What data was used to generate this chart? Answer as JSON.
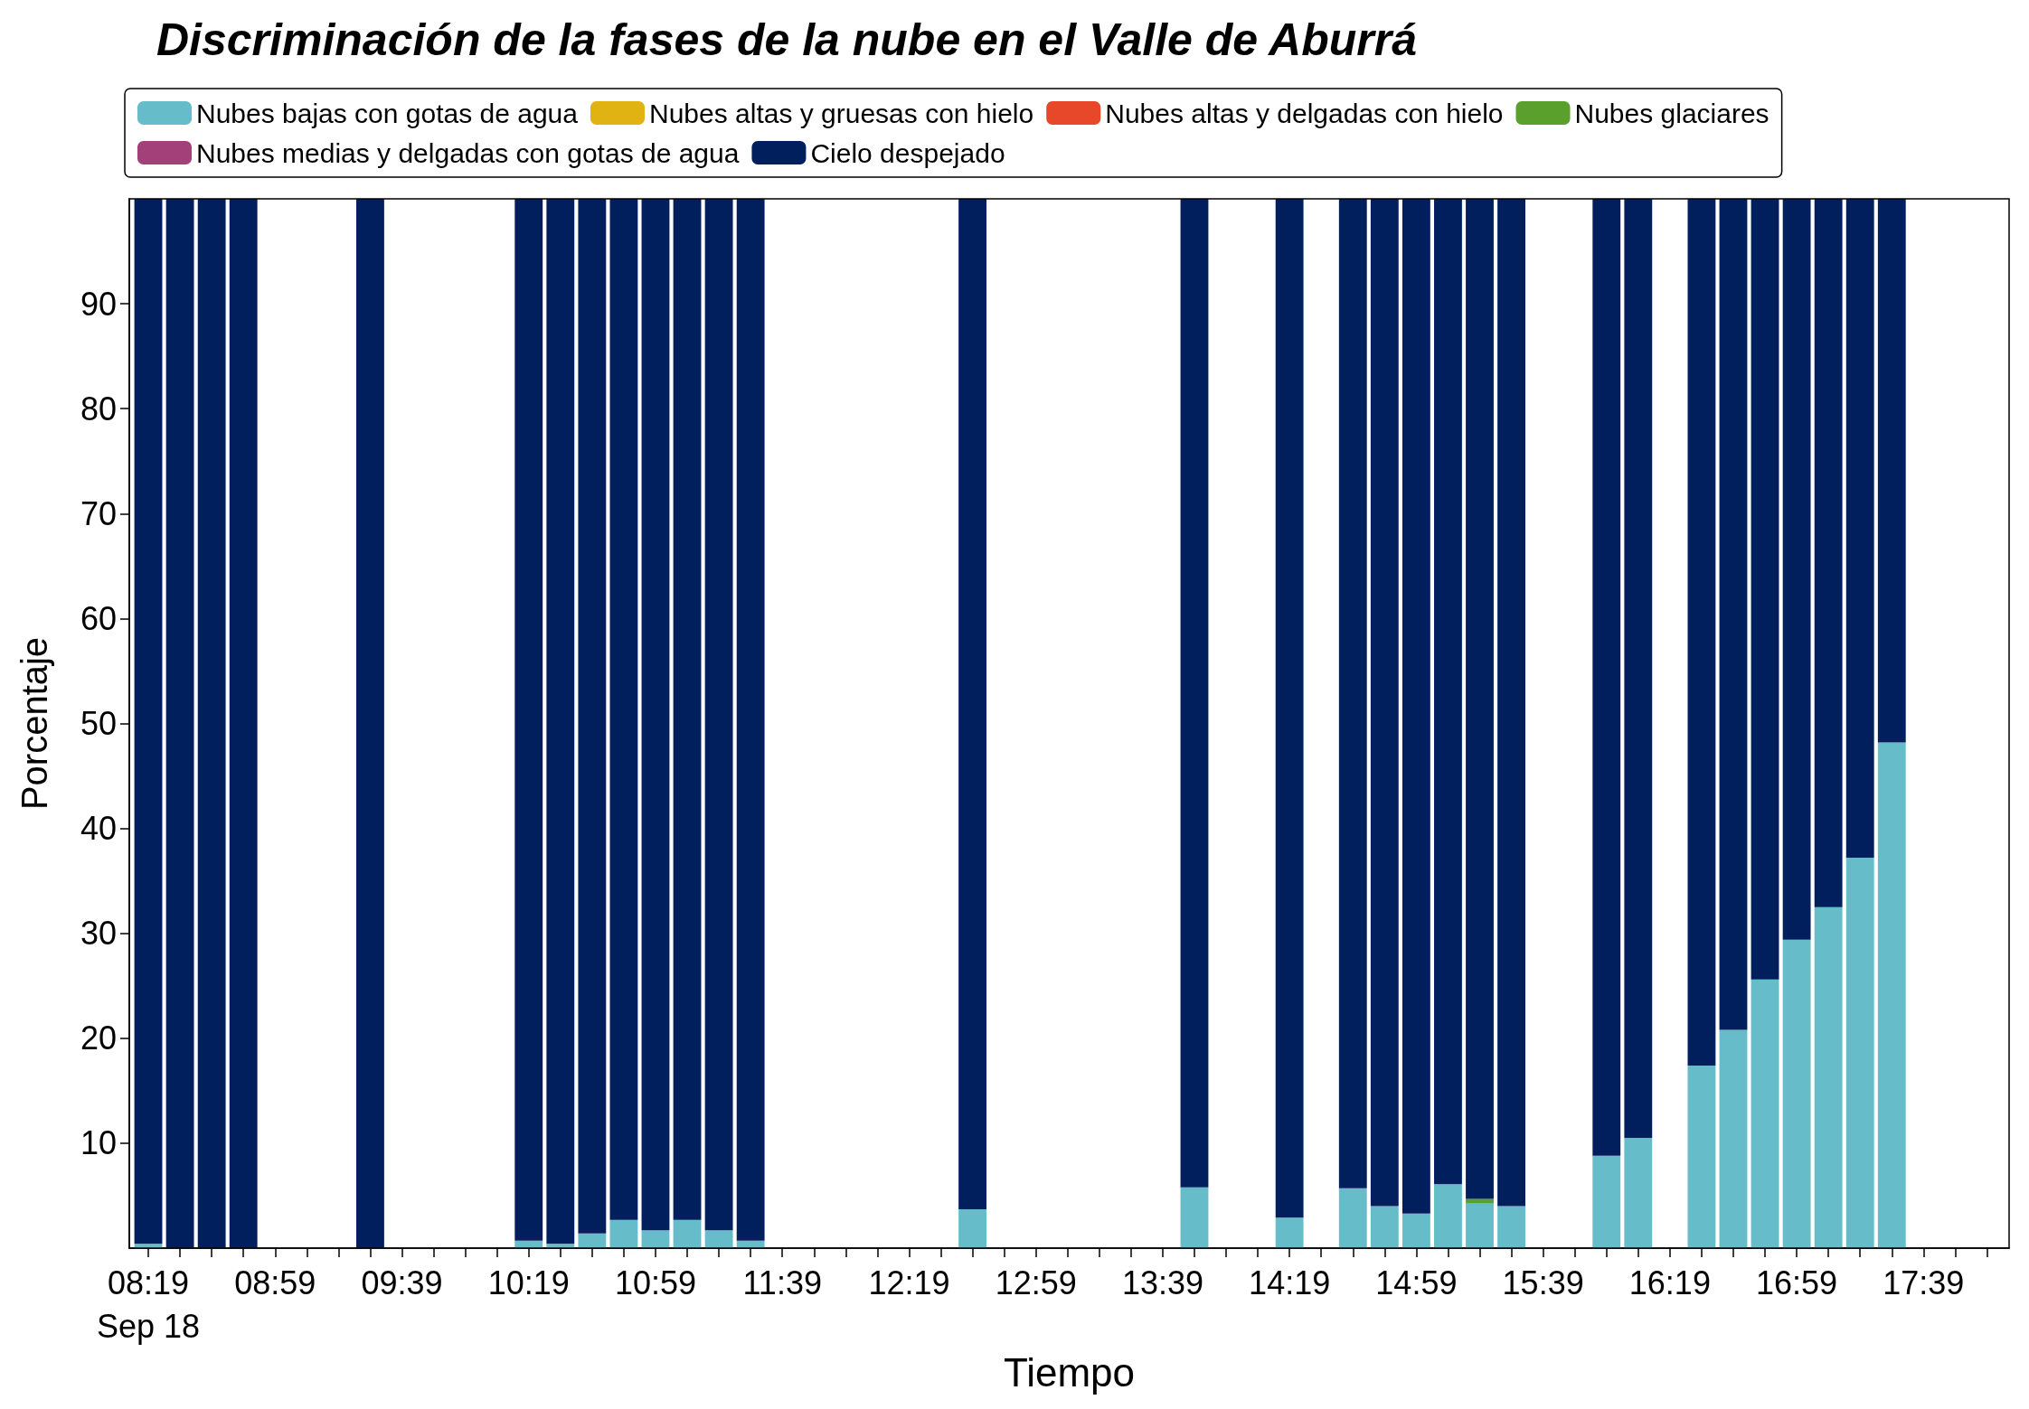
{
  "chart_data": {
    "type": "bar",
    "stacked": true,
    "title": "Discriminación de la fases de la nube en el Valle de Aburrá",
    "xlabel": "Tiempo",
    "ylabel": "Porcentaje",
    "legend": "top",
    "grid": false,
    "x": [
      "--09-18T08:19",
      "--09-18T08:29",
      "--09-18T08:39",
      "--09-18T08:49",
      "--09-18T09:29",
      "--09-18T10:19",
      "--09-18T10:29",
      "--09-18T10:39",
      "--09-18T10:49",
      "--09-18T10:59",
      "--09-18T11:09",
      "--09-18T11:19",
      "--09-18T11:29",
      "--09-18T12:39",
      "--09-18T13:49",
      "--09-18T14:19",
      "--09-18T14:39",
      "--09-18T14:49",
      "--09-18T14:59",
      "--09-18T15:09",
      "--09-18T15:19",
      "--09-18T15:29",
      "--09-18T15:59",
      "--09-18T16:09",
      "--09-18T16:29",
      "--09-18T16:39",
      "--09-18T16:49",
      "--09-18T16:59",
      "--09-18T17:09",
      "--09-18T17:19",
      "--09-18T17:29"
    ],
    "series": [
      {
        "name": "Nubes bajas con gotas de agua",
        "color": "#66bdc9",
        "values": [
          0.4,
          0,
          0,
          0,
          0,
          0.7,
          0.4,
          1.4,
          2.7,
          1.7,
          2.7,
          1.7,
          0.7,
          3.7,
          5.8,
          2.9,
          5.7,
          4.0,
          3.3,
          6.1,
          4.3,
          4.0,
          8.8,
          10.5,
          17.4,
          20.8,
          25.6,
          29.4,
          32.5,
          37.2,
          48.2
        ]
      },
      {
        "name": "Nubes glaciares",
        "color": "#5aa02c",
        "values": [
          0,
          0,
          0,
          0,
          0,
          0,
          0,
          0,
          0,
          0,
          0,
          0,
          0,
          0,
          0,
          0,
          0,
          0,
          0,
          0,
          0.4,
          0,
          0,
          0,
          0,
          0,
          0,
          0,
          0,
          0,
          0
        ]
      },
      {
        "name": "Nubes altas y gruesas con hielo",
        "color": "#e0b312",
        "values": [
          0,
          0,
          0,
          0,
          0,
          0,
          0,
          0,
          0,
          0,
          0,
          0,
          0,
          0,
          0,
          0,
          0,
          0,
          0,
          0,
          0,
          0,
          0,
          0,
          0,
          0,
          0,
          0,
          0,
          0,
          0
        ]
      },
      {
        "name": "Nubes medias y delgadas con gotas de agua",
        "color": "#a3407a",
        "values": [
          0,
          0,
          0,
          0,
          0,
          0,
          0,
          0,
          0,
          0,
          0,
          0,
          0,
          0,
          0,
          0,
          0,
          0,
          0,
          0,
          0,
          0,
          0,
          0,
          0,
          0,
          0,
          0,
          0,
          0,
          0
        ]
      },
      {
        "name": "Nubes altas y delgadas con hielo",
        "color": "#e8482a",
        "values": [
          0,
          0,
          0,
          0,
          0,
          0,
          0,
          0,
          0,
          0,
          0,
          0,
          0,
          0,
          0,
          0,
          0,
          0,
          0,
          0,
          0,
          0,
          0,
          0,
          0,
          0,
          0,
          0,
          0,
          0,
          0
        ]
      },
      {
        "name": "Cielo despejado",
        "color": "#001f5c",
        "values": [
          99.6,
          100,
          100,
          100,
          100,
          99.3,
          99.6,
          98.6,
          97.3,
          98.3,
          97.3,
          98.3,
          99.3,
          96.3,
          94.2,
          97.1,
          94.3,
          96.0,
          96.7,
          93.9,
          95.3,
          96.0,
          91.2,
          89.5,
          82.6,
          79.2,
          74.4,
          70.6,
          67.5,
          62.8,
          51.8
        ]
      }
    ],
    "xlim": [
      "--09-18T08:13",
      "--09-18T18:06"
    ],
    "xticks": [
      {
        "value": "--09-18T08:19",
        "label": "08:19\nSep 18"
      },
      {
        "value": "--09-18T08:29",
        "label": null
      },
      {
        "value": "--09-18T08:39",
        "label": null
      },
      {
        "value": "--09-18T08:49",
        "label": null
      },
      {
        "value": "--09-18T08:59",
        "label": "08:59"
      },
      {
        "value": "--09-18T09:09",
        "label": null
      },
      {
        "value": "--09-18T09:19",
        "label": null
      },
      {
        "value": "--09-18T09:29",
        "label": null
      },
      {
        "value": "--09-18T09:39",
        "label": "09:39"
      },
      {
        "value": "--09-18T09:49",
        "label": null
      },
      {
        "value": "--09-18T09:59",
        "label": null
      },
      {
        "value": "--09-18T10:09",
        "label": null
      },
      {
        "value": "--09-18T10:19",
        "label": "10:19"
      },
      {
        "value": "--09-18T10:29",
        "label": null
      },
      {
        "value": "--09-18T10:39",
        "label": null
      },
      {
        "value": "--09-18T10:49",
        "label": null
      },
      {
        "value": "--09-18T10:59",
        "label": "10:59"
      },
      {
        "value": "--09-18T11:09",
        "label": null
      },
      {
        "value": "--09-18T11:19",
        "label": null
      },
      {
        "value": "--09-18T11:29",
        "label": null
      },
      {
        "value": "--09-18T11:39",
        "label": "11:39"
      },
      {
        "value": "--09-18T11:49",
        "label": null
      },
      {
        "value": "--09-18T11:59",
        "label": null
      },
      {
        "value": "--09-18T12:09",
        "label": null
      },
      {
        "value": "--09-18T12:19",
        "label": "12:19"
      },
      {
        "value": "--09-18T12:29",
        "label": null
      },
      {
        "value": "--09-18T12:39",
        "label": null
      },
      {
        "value": "--09-18T12:49",
        "label": null
      },
      {
        "value": "--09-18T12:59",
        "label": "12:59"
      },
      {
        "value": "--09-18T13:09",
        "label": null
      },
      {
        "value": "--09-18T13:19",
        "label": null
      },
      {
        "value": "--09-18T13:29",
        "label": null
      },
      {
        "value": "--09-18T13:39",
        "label": "13:39"
      },
      {
        "value": "--09-18T13:49",
        "label": null
      },
      {
        "value": "--09-18T13:59",
        "label": null
      },
      {
        "value": "--09-18T14:09",
        "label": null
      },
      {
        "value": "--09-18T14:19",
        "label": "14:19"
      },
      {
        "value": "--09-18T14:29",
        "label": null
      },
      {
        "value": "--09-18T14:39",
        "label": null
      },
      {
        "value": "--09-18T14:49",
        "label": null
      },
      {
        "value": "--09-18T14:59",
        "label": "14:59"
      },
      {
        "value": "--09-18T15:09",
        "label": null
      },
      {
        "value": "--09-18T15:19",
        "label": null
      },
      {
        "value": "--09-18T15:29",
        "label": null
      },
      {
        "value": "--09-18T15:39",
        "label": "15:39"
      },
      {
        "value": "--09-18T15:49",
        "label": null
      },
      {
        "value": "--09-18T15:59",
        "label": null
      },
      {
        "value": "--09-18T16:09",
        "label": null
      },
      {
        "value": "--09-18T16:19",
        "label": "16:19"
      },
      {
        "value": "--09-18T16:29",
        "label": null
      },
      {
        "value": "--09-18T16:39",
        "label": null
      },
      {
        "value": "--09-18T16:49",
        "label": null
      },
      {
        "value": "--09-18T16:59",
        "label": "16:59"
      },
      {
        "value": "--09-18T17:09",
        "label": null
      },
      {
        "value": "--09-18T17:19",
        "label": null
      },
      {
        "value": "--09-18T17:29",
        "label": null
      },
      {
        "value": "--09-18T17:39",
        "label": "17:39"
      },
      {
        "value": "--09-18T17:49",
        "label": null
      },
      {
        "value": "--09-18T17:59",
        "label": null
      }
    ],
    "ylim": [
      0,
      100
    ],
    "yticks": [
      10,
      20,
      30,
      40,
      50,
      60,
      70,
      80,
      90
    ]
  }
}
